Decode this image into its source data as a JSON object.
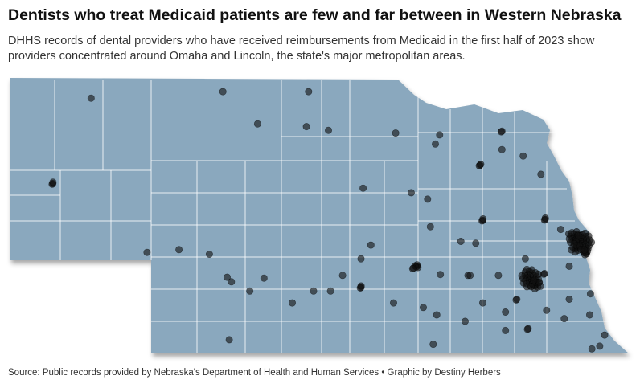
{
  "title": "Dentists who treat Medicaid patients are few and far between in Western Nebraska",
  "subtitle": "DHHS records of dental providers who have received reimbursements from Medicaid in the first half of 2023 show providers concentrated around Omaha and Lincoln, the state's major metropolitan areas.",
  "source": "Source: Public records provided by Nebraska's Department of Health and Human Services • Graphic by Destiny Herbers",
  "colors": {
    "state_fill": "#8aa8be",
    "county_border": "#ffffff",
    "dot": "#111111"
  },
  "providers": [
    {
      "lon": -103.44,
      "lat": 41.85,
      "count": 3
    },
    {
      "lon": -102.9,
      "lat": 42.78,
      "count": 1
    },
    {
      "lon": -101.04,
      "lat": 42.85,
      "count": 1
    },
    {
      "lon": -100.55,
      "lat": 42.5,
      "count": 1
    },
    {
      "lon": -99.86,
      "lat": 42.47,
      "count": 1
    },
    {
      "lon": -99.83,
      "lat": 42.85,
      "count": 1
    },
    {
      "lon": -99.55,
      "lat": 42.43,
      "count": 1
    },
    {
      "lon": -98.6,
      "lat": 42.4,
      "count": 1
    },
    {
      "lon": -98.04,
      "lat": 42.28,
      "count": 1
    },
    {
      "lon": -97.98,
      "lat": 42.38,
      "count": 1
    },
    {
      "lon": -97.1,
      "lat": 42.42,
      "count": 2
    },
    {
      "lon": -97.1,
      "lat": 42.22,
      "count": 1
    },
    {
      "lon": -97.41,
      "lat": 42.05,
      "count": 2
    },
    {
      "lon": -96.8,
      "lat": 42.15,
      "count": 1
    },
    {
      "lon": -97.4,
      "lat": 42.06,
      "count": 1
    },
    {
      "lon": -96.55,
      "lat": 41.95,
      "count": 1
    },
    {
      "lon": -99.06,
      "lat": 41.8,
      "count": 1
    },
    {
      "lon": -98.38,
      "lat": 41.75,
      "count": 1
    },
    {
      "lon": -98.15,
      "lat": 41.68,
      "count": 1
    },
    {
      "lon": -97.37,
      "lat": 41.45,
      "count": 3
    },
    {
      "lon": -96.49,
      "lat": 41.46,
      "count": 3
    },
    {
      "lon": -96.27,
      "lat": 41.35,
      "count": 1
    },
    {
      "lon": -96.08,
      "lat": 41.27,
      "count": 15
    },
    {
      "lon": -95.95,
      "lat": 41.22,
      "count": 25
    },
    {
      "lon": -96.05,
      "lat": 41.15,
      "count": 10
    },
    {
      "lon": -95.92,
      "lat": 41.1,
      "count": 8
    },
    {
      "lon": -98.11,
      "lat": 41.38,
      "count": 1
    },
    {
      "lon": -97.68,
      "lat": 41.22,
      "count": 1
    },
    {
      "lon": -97.47,
      "lat": 41.2,
      "count": 1
    },
    {
      "lon": -96.77,
      "lat": 41.03,
      "count": 1
    },
    {
      "lon": -96.7,
      "lat": 40.82,
      "count": 30
    },
    {
      "lon": -96.62,
      "lat": 40.75,
      "count": 10
    },
    {
      "lon": -96.5,
      "lat": 40.87,
      "count": 2
    },
    {
      "lon": -96.15,
      "lat": 40.95,
      "count": 1
    },
    {
      "lon": -95.85,
      "lat": 40.65,
      "count": 1
    },
    {
      "lon": -96.15,
      "lat": 40.59,
      "count": 1
    },
    {
      "lon": -96.89,
      "lat": 40.59,
      "count": 2
    },
    {
      "lon": -97.15,
      "lat": 40.85,
      "count": 1
    },
    {
      "lon": -97.58,
      "lat": 40.85,
      "count": 1
    },
    {
      "lon": -97.97,
      "lat": 40.86,
      "count": 1
    },
    {
      "lon": -98.3,
      "lat": 40.95,
      "count": 5
    },
    {
      "lon": -98.35,
      "lat": 40.93,
      "count": 2
    },
    {
      "lon": -98.95,
      "lat": 41.18,
      "count": 1
    },
    {
      "lon": -99.09,
      "lat": 41.03,
      "count": 1
    },
    {
      "lon": -99.09,
      "lat": 40.72,
      "count": 3
    },
    {
      "lon": -99.35,
      "lat": 40.85,
      "count": 1
    },
    {
      "lon": -99.52,
      "lat": 40.68,
      "count": 1
    },
    {
      "lon": -99.76,
      "lat": 40.68,
      "count": 1
    },
    {
      "lon": -100.06,
      "lat": 40.55,
      "count": 1
    },
    {
      "lon": -100.46,
      "lat": 40.82,
      "count": 1
    },
    {
      "lon": -100.66,
      "lat": 40.68,
      "count": 1
    },
    {
      "lon": -100.92,
      "lat": 40.78,
      "count": 1
    },
    {
      "lon": -100.98,
      "lat": 40.83,
      "count": 1
    },
    {
      "lon": -101.66,
      "lat": 41.13,
      "count": 1
    },
    {
      "lon": -101.23,
      "lat": 41.08,
      "count": 1
    },
    {
      "lon": -102.11,
      "lat": 41.1,
      "count": 1
    },
    {
      "lon": -97.55,
      "lat": 40.85,
      "count": 1
    },
    {
      "lon": -98.21,
      "lat": 40.5,
      "count": 1
    },
    {
      "lon": -98.63,
      "lat": 40.55,
      "count": 1
    },
    {
      "lon": -98.02,
      "lat": 40.42,
      "count": 1
    },
    {
      "lon": -97.62,
      "lat": 40.35,
      "count": 1
    },
    {
      "lon": -97.37,
      "lat": 40.55,
      "count": 1
    },
    {
      "lon": -97.05,
      "lat": 40.45,
      "count": 1
    },
    {
      "lon": -97.05,
      "lat": 40.25,
      "count": 1
    },
    {
      "lon": -96.73,
      "lat": 40.27,
      "count": 2
    },
    {
      "lon": -96.47,
      "lat": 40.47,
      "count": 1
    },
    {
      "lon": -96.22,
      "lat": 40.38,
      "count": 1
    },
    {
      "lon": -95.86,
      "lat": 40.42,
      "count": 1
    },
    {
      "lon": -95.65,
      "lat": 40.2,
      "count": 1
    },
    {
      "lon": -95.72,
      "lat": 40.08,
      "count": 1
    },
    {
      "lon": -95.83,
      "lat": 40.05,
      "count": 1
    },
    {
      "lon": -98.07,
      "lat": 40.1,
      "count": 1
    },
    {
      "lon": -100.95,
      "lat": 40.15,
      "count": 1
    }
  ]
}
